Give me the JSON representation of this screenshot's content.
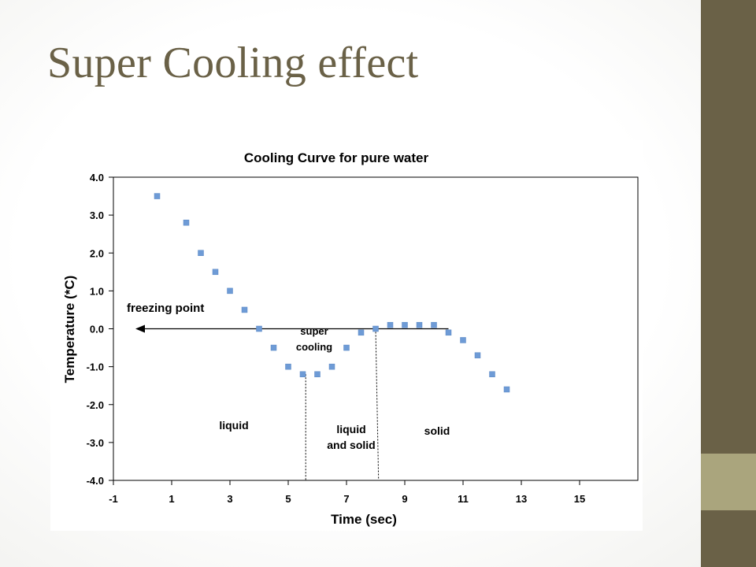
{
  "slide": {
    "title": "Super Cooling effect",
    "colors": {
      "accent_dark": "#6a6147",
      "accent_light": "#aaa57d",
      "title": "#6a6147"
    }
  },
  "chart_data": {
    "type": "scatter",
    "title": "Cooling Curve for pure water",
    "xlabel": "Time (sec)",
    "ylabel": "Temperature (*C)",
    "xlim": [
      -1,
      17
    ],
    "ylim": [
      -4.0,
      4.0
    ],
    "x_ticks": [
      -1,
      1,
      3,
      5,
      7,
      9,
      11,
      13,
      15
    ],
    "x_tick_labels": [
      "-1",
      "1",
      "3",
      "5",
      "7",
      "9",
      "11",
      "13",
      "15"
    ],
    "y_ticks": [
      4.0,
      3.0,
      2.0,
      1.0,
      0.0,
      -1.0,
      -2.0,
      -3.0,
      -4.0
    ],
    "y_tick_labels": [
      "4.0",
      "3.0",
      "2.0",
      "1.0",
      "0.0",
      "-1.0",
      "-2.0",
      "-3.0",
      "-4.0"
    ],
    "grid": false,
    "marker_color": "#6e9bd6",
    "series": [
      {
        "points": [
          [
            0.5,
            3.5
          ],
          [
            1.5,
            2.8
          ],
          [
            2.0,
            2.0
          ],
          [
            2.5,
            1.5
          ],
          [
            3.0,
            1.0
          ],
          [
            3.5,
            0.5
          ],
          [
            4.0,
            0.0
          ],
          [
            4.5,
            -0.5
          ],
          [
            5.0,
            -1.0
          ],
          [
            5.5,
            -1.2
          ],
          [
            6.0,
            -1.2
          ],
          [
            6.5,
            -1.0
          ],
          [
            7.0,
            -0.5
          ],
          [
            7.5,
            -0.1
          ],
          [
            8.0,
            0.0
          ],
          [
            8.5,
            0.1
          ],
          [
            9.0,
            0.1
          ],
          [
            9.5,
            0.1
          ],
          [
            10.0,
            0.1
          ],
          [
            10.5,
            -0.1
          ],
          [
            11.0,
            -0.3
          ],
          [
            11.5,
            -0.7
          ],
          [
            12.0,
            -1.2
          ],
          [
            12.5,
            -1.6
          ]
        ]
      }
    ],
    "freezing_line": {
      "y": 0.0,
      "x_from": 10.5,
      "x_to": -1
    },
    "dividers": [
      {
        "x_top": 5.6,
        "x_bottom": 5.6,
        "y_top": -1.2
      },
      {
        "x_top": 8.0,
        "x_bottom": 8.1,
        "y_top": 0.0
      }
    ],
    "annotations": {
      "freezing_point": "freezing point",
      "super_1": "super",
      "super_2": "cooling",
      "liquid": "liquid",
      "liquid_solid_1": "liquid",
      "liquid_solid_2": "and solid",
      "solid": "solid"
    }
  }
}
